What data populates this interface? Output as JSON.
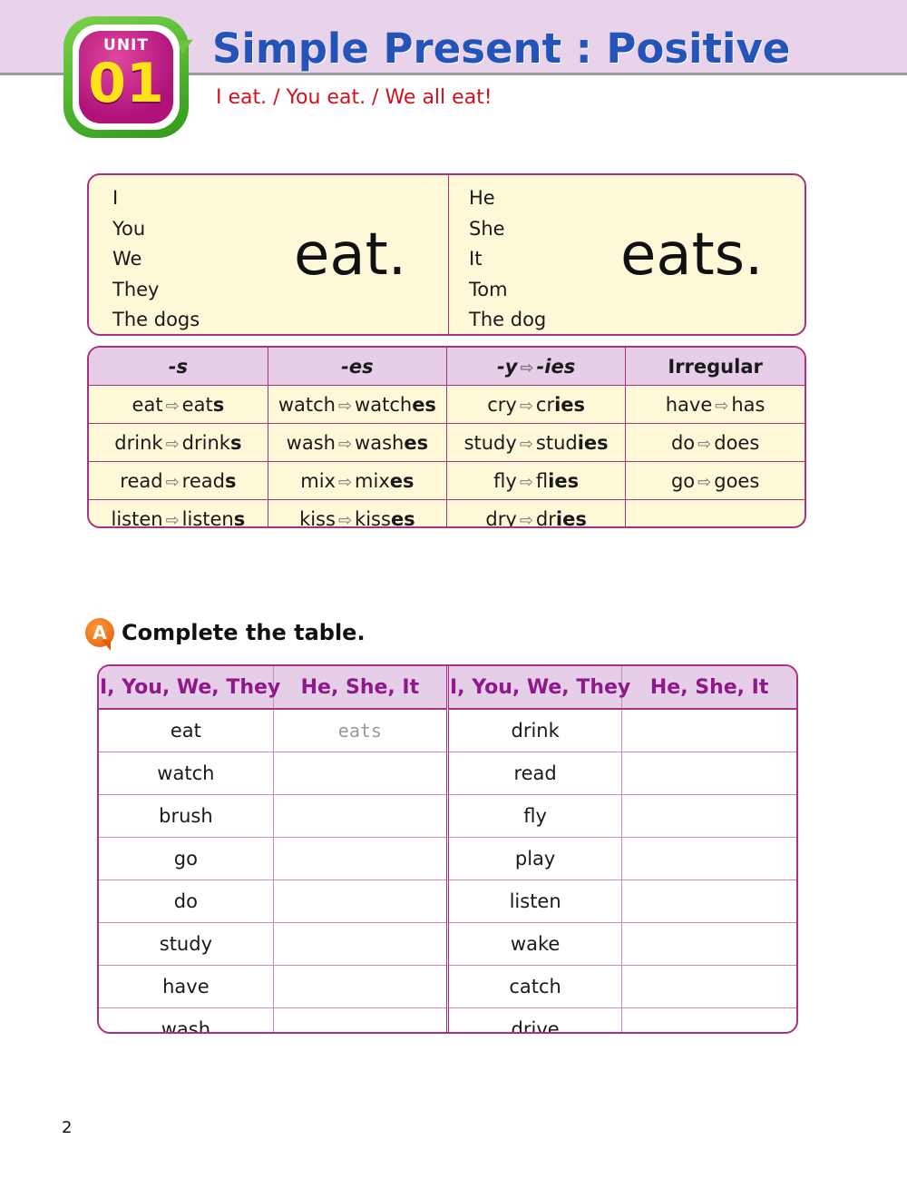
{
  "header": {
    "unit_label": "UNIT",
    "unit_number": "01",
    "title": "Simple Present : Positive",
    "subtitle": "I eat. / You eat. / We all eat!"
  },
  "conjugation": {
    "left_subjects": [
      "I",
      "You",
      "We",
      "They",
      "The dogs"
    ],
    "left_verb": "eat.",
    "right_subjects": [
      "He",
      "She",
      "It",
      "Tom",
      "The dog"
    ],
    "right_verb": "eats."
  },
  "rules": {
    "headers": [
      "-s",
      "-es",
      "-y",
      "-ies",
      "Irregular"
    ],
    "rows": [
      [
        [
          "eat",
          "eat",
          "s"
        ],
        [
          "watch",
          "watch",
          "es"
        ],
        [
          "cry",
          "cr",
          "ies"
        ],
        [
          "have",
          "has",
          ""
        ]
      ],
      [
        [
          "drink",
          "drink",
          "s"
        ],
        [
          "wash",
          "wash",
          "es"
        ],
        [
          "study",
          "stud",
          "ies"
        ],
        [
          "do",
          "does",
          ""
        ]
      ],
      [
        [
          "read",
          "read",
          "s"
        ],
        [
          "mix",
          "mix",
          "es"
        ],
        [
          "fly",
          "fl",
          "ies"
        ],
        [
          "go",
          "goes",
          ""
        ]
      ],
      [
        [
          "listen",
          "listen",
          "s"
        ],
        [
          "kiss",
          "kiss",
          "es"
        ],
        [
          "dry",
          "dr",
          "ies"
        ],
        [
          "",
          "",
          ""
        ]
      ]
    ]
  },
  "section_a": {
    "letter": "A",
    "instruction": "Complete the table.",
    "headers": [
      "I, You, We, They",
      "He, She, It",
      "I, You, We, They",
      "He, She, It"
    ],
    "rows": [
      [
        "eat",
        "eats",
        "drink",
        ""
      ],
      [
        "watch",
        "",
        "read",
        ""
      ],
      [
        "brush",
        "",
        "fly",
        ""
      ],
      [
        "go",
        "",
        "play",
        ""
      ],
      [
        "do",
        "",
        "listen",
        ""
      ],
      [
        "study",
        "",
        "wake",
        ""
      ],
      [
        "have",
        "",
        "catch",
        ""
      ],
      [
        "wash",
        "",
        "drive",
        ""
      ]
    ]
  },
  "page_number": "2",
  "colors": {
    "header_band": "#e8d3ea",
    "title_blue": "#2554b8",
    "subtitle_red": "#d1121e",
    "border_magenta": "#a9327e",
    "cream": "#fcf8d8",
    "header_purple_text": "#8e1a8a"
  }
}
